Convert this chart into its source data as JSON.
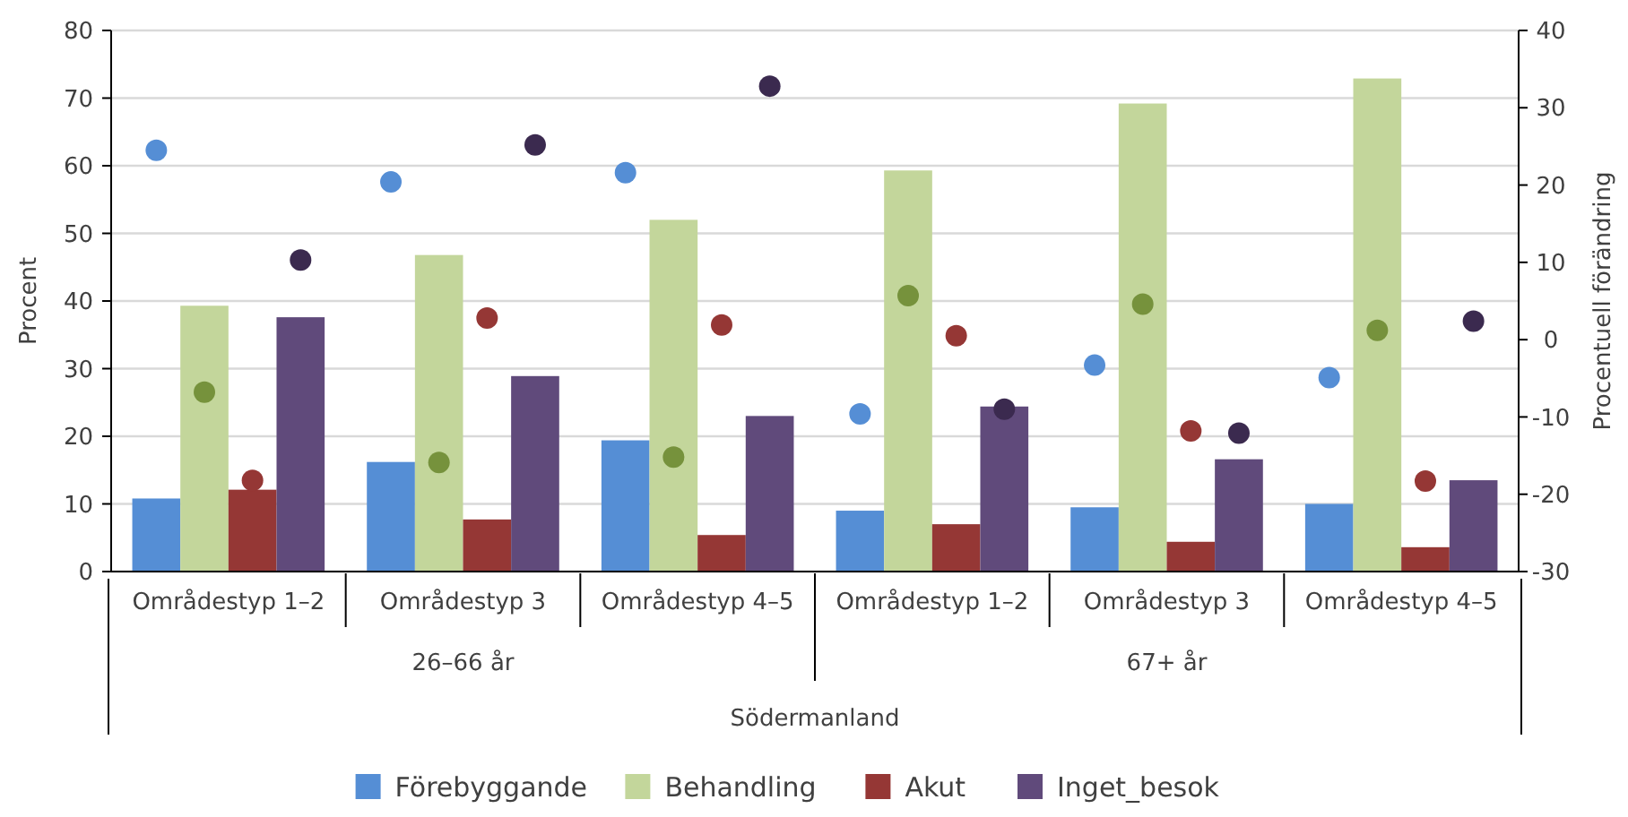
{
  "chart_data": {
    "type": "bar",
    "ylabel": "Procent",
    "y2label": "Procentuell förändring",
    "categories": [
      "Områdestyp 1–2",
      "Områdestyp 3",
      "Områdestyp 4–5",
      "Områdestyp 1–2",
      "Områdestyp 3",
      "Områdestyp 4–5"
    ],
    "annotations": [
      "26–66 år",
      "67+ år",
      "Södermanland"
    ],
    "series": [
      {
        "name": "Förebyggande",
        "color": "#558ed5",
        "values": [
          10.8,
          16.2,
          19.4,
          9.0,
          9.5,
          10.0
        ]
      },
      {
        "name": "Behandling",
        "color": "#c3d69b",
        "values": [
          39.3,
          46.8,
          52.0,
          59.3,
          69.2,
          72.9
        ]
      },
      {
        "name": "Akut",
        "color": "#953735",
        "values": [
          12.1,
          7.7,
          5.4,
          7.0,
          4.4,
          3.6
        ]
      },
      {
        "name": "Inget_besok",
        "color": "#604a7b",
        "values": [
          37.6,
          28.9,
          23.0,
          24.4,
          16.6,
          13.5
        ]
      },
      {
        "type": "scatter",
        "axis": "y2",
        "color": "#558ed5",
        "values": [
          24.5,
          20.4,
          21.6,
          -9.6,
          -3.3,
          -4.9
        ]
      },
      {
        "type": "scatter",
        "axis": "y2",
        "color": "#76923c",
        "values": [
          -6.8,
          -15.9,
          -15.2,
          5.7,
          4.6,
          1.2
        ]
      },
      {
        "type": "scatter",
        "axis": "y2",
        "color": "#953735",
        "values": [
          -18.2,
          2.8,
          1.9,
          0.5,
          -11.8,
          -18.3
        ]
      },
      {
        "type": "scatter",
        "axis": "y2",
        "color": "#3b2a4f",
        "values": [
          10.3,
          25.2,
          32.8,
          -9.0,
          -12.1,
          2.4
        ]
      }
    ],
    "ylim": [
      0,
      80
    ],
    "yticks": [
      0,
      10,
      20,
      30,
      40,
      50,
      60,
      70,
      80
    ],
    "y2lim": [
      -30,
      40
    ],
    "y2ticks": [
      -30,
      -20,
      -10,
      0,
      10,
      20,
      30,
      40
    ],
    "grid": "y",
    "legend": "bottom",
    "marker": "circle"
  }
}
